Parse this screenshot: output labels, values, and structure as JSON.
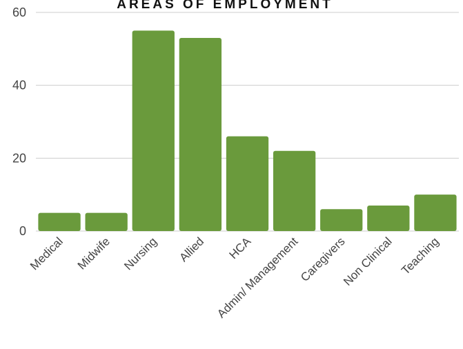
{
  "chart_data": {
    "type": "bar",
    "title": "AREAS OF EMPLOYMENT",
    "categories": [
      "Medical",
      "Midwife",
      "Nursing",
      "Allied",
      "HCA",
      "Admin/ Management",
      "Caregivers",
      "Non Clinical",
      "Teaching"
    ],
    "values": [
      5,
      5,
      55,
      53,
      26,
      22,
      6,
      7,
      10
    ],
    "ylim": [
      0,
      60
    ],
    "yticks": [
      0,
      20,
      40,
      60
    ],
    "grid": true,
    "bar_color": "#6a9a3c",
    "grid_color": "#cccccc"
  }
}
